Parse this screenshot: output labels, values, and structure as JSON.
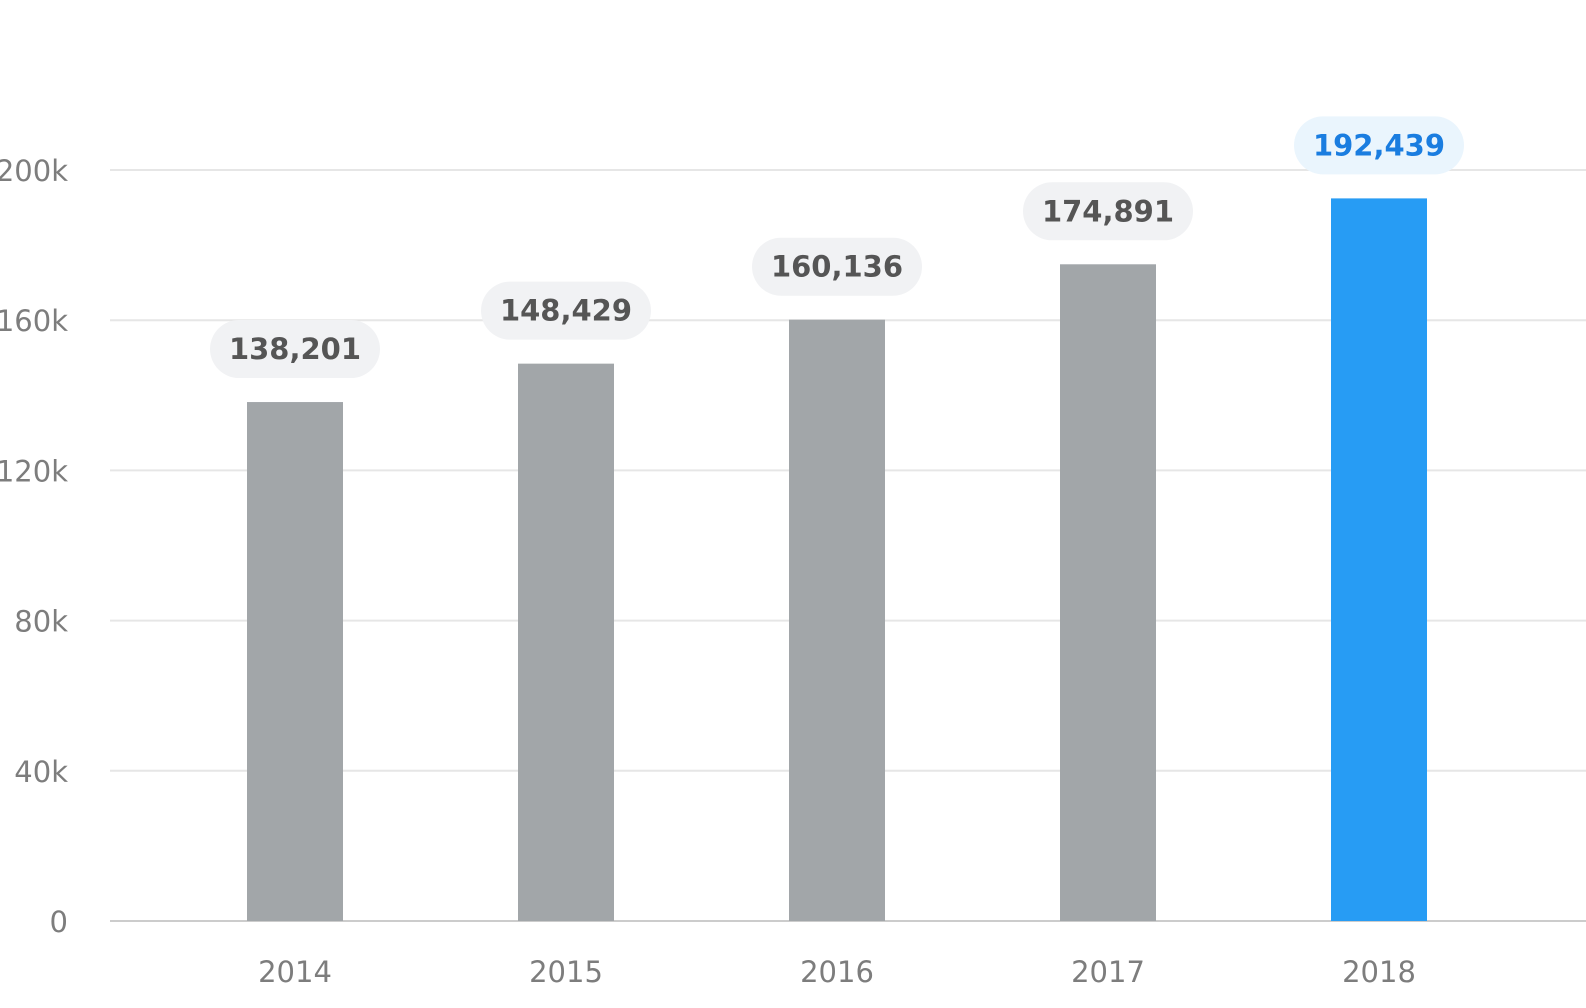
{
  "chart_data": {
    "type": "bar",
    "categories": [
      "2014",
      "2015",
      "2016",
      "2017",
      "2018"
    ],
    "values": [
      138201,
      148429,
      160136,
      174891,
      192439
    ],
    "data_labels": [
      "138,201",
      "148,429",
      "160,136",
      "174,891",
      "192,439"
    ],
    "y_ticks": [
      {
        "value": 0,
        "label": "0"
      },
      {
        "value": 40000,
        "label": "40k"
      },
      {
        "value": 80000,
        "label": "80k"
      },
      {
        "value": 120000,
        "label": "120k"
      },
      {
        "value": 160000,
        "label": "160k"
      },
      {
        "value": 200000,
        "label": "200k"
      }
    ],
    "ylim": [
      0,
      200000
    ],
    "grid": true,
    "highlight_index": 4,
    "colors": {
      "bar": "#a2a6a9",
      "bar_highlight": "#279cf4",
      "label_bg": "#f1f2f4",
      "label_bg_highlight": "#eaf5fd",
      "label_text": "#555555",
      "label_text_highlight": "#1a7de0"
    }
  }
}
